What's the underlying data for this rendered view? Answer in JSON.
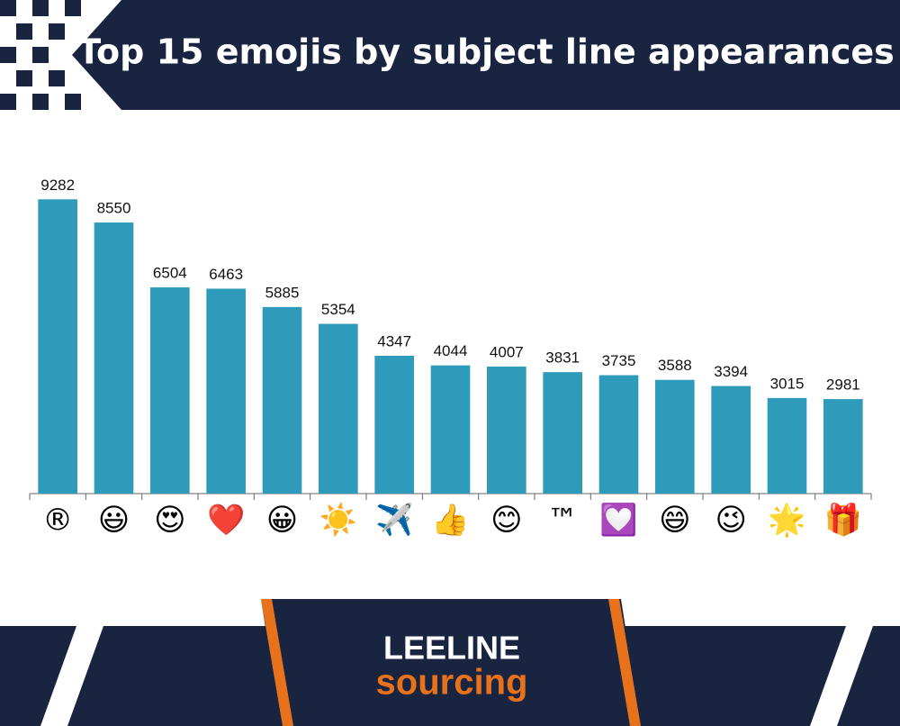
{
  "chart_data": {
    "type": "bar",
    "title": "Top 15 emojis by subject line appearances",
    "categories": [
      "®",
      "😃",
      "😍",
      "❤️",
      "😀",
      "☀️",
      "✈️",
      "👍",
      "😊",
      "™",
      "💟",
      "😄",
      "😉",
      "🌟",
      "🎁"
    ],
    "values": [
      9282,
      8550,
      6504,
      6463,
      5885,
      5354,
      4347,
      4044,
      4007,
      3831,
      3735,
      3588,
      3394,
      3015,
      2981
    ],
    "color": "#2e9bba",
    "ylim": [
      0,
      10000
    ]
  },
  "footer": {
    "logo_top": "LEELINE",
    "logo_bottom": "sourcing"
  }
}
